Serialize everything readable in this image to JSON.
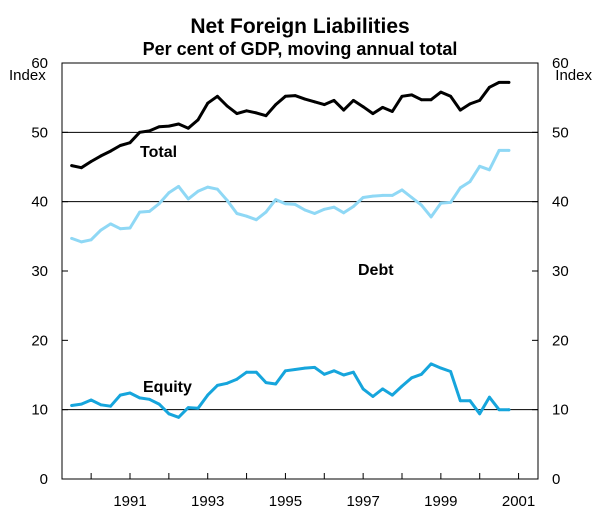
{
  "chart_data": {
    "type": "line",
    "title": "Net Foreign Liabilities",
    "subtitle": "Per cent of GDP, moving annual total",
    "ylabel_left": "Index",
    "ylabel_right": "Index",
    "xlim": [
      1989.25,
      2001.5
    ],
    "ylim": [
      0,
      60
    ],
    "yticks": [
      0,
      10,
      20,
      30,
      40,
      50,
      60
    ],
    "ytick_labels": [
      "0",
      "10",
      "20",
      "30",
      "40",
      "50",
      "60"
    ],
    "xtick_years": [
      1991,
      1993,
      1995,
      1997,
      1999,
      2001
    ],
    "xtick_labels": [
      "1991",
      "1993",
      "1995",
      "1997",
      "1999",
      "2001"
    ],
    "grid": "horizontal at 10, 40, 50",
    "x": [
      1989.5,
      1989.75,
      1990.0,
      1990.25,
      1990.5,
      1990.75,
      1991.0,
      1991.25,
      1991.5,
      1991.75,
      1992.0,
      1992.25,
      1992.5,
      1992.75,
      1993.0,
      1993.25,
      1993.5,
      1993.75,
      1994.0,
      1994.25,
      1994.5,
      1994.75,
      1995.0,
      1995.25,
      1995.5,
      1995.75,
      1996.0,
      1996.25,
      1996.5,
      1996.75,
      1997.0,
      1997.25,
      1997.5,
      1997.75,
      1998.0,
      1998.25,
      1998.5,
      1998.75,
      1999.0,
      1999.25,
      1999.5,
      1999.75,
      2000.0,
      2000.25,
      2000.5,
      2000.75
    ],
    "series": [
      {
        "name": "Total",
        "color": "#000000",
        "values": [
          45.2,
          44.9,
          45.8,
          46.6,
          47.3,
          48.1,
          48.5,
          50.0,
          50.2,
          50.8,
          50.9,
          51.2,
          50.6,
          51.8,
          54.2,
          55.2,
          53.8,
          52.7,
          53.1,
          52.8,
          52.4,
          54.0,
          55.2,
          55.3,
          54.8,
          54.4,
          54.0,
          54.6,
          53.2,
          54.6,
          53.7,
          52.7,
          53.6,
          53.0,
          55.2,
          55.4,
          54.7,
          54.7,
          55.8,
          55.2,
          53.2,
          54.1,
          54.6,
          56.5,
          57.2,
          57.2
        ]
      },
      {
        "name": "Debt",
        "color": "#8fd8f5",
        "values": [
          34.7,
          34.2,
          34.5,
          35.9,
          36.8,
          36.1,
          36.2,
          38.5,
          38.6,
          39.7,
          41.3,
          42.2,
          40.4,
          41.5,
          42.1,
          41.8,
          40.2,
          38.3,
          37.9,
          37.4,
          38.5,
          40.3,
          39.7,
          39.6,
          38.8,
          38.3,
          38.9,
          39.2,
          38.4,
          39.3,
          40.6,
          40.8,
          40.9,
          40.9,
          41.7,
          40.6,
          39.5,
          37.8,
          39.8,
          39.9,
          42.0,
          42.9,
          45.1,
          44.6,
          47.4,
          47.4
        ]
      },
      {
        "name": "Equity",
        "color": "#16a5dc",
        "values": [
          10.6,
          10.8,
          11.4,
          10.7,
          10.5,
          12.1,
          12.4,
          11.7,
          11.5,
          10.8,
          9.4,
          8.9,
          10.3,
          10.2,
          12.1,
          13.5,
          13.8,
          14.4,
          15.4,
          15.4,
          13.9,
          13.7,
          15.6,
          15.8,
          16.0,
          16.1,
          15.1,
          15.6,
          15.0,
          15.4,
          13.0,
          11.9,
          13.0,
          12.1,
          13.4,
          14.6,
          15.1,
          16.6,
          16.0,
          15.5,
          11.3,
          11.3,
          9.4,
          11.8,
          10.0,
          10.0
        ]
      }
    ]
  }
}
